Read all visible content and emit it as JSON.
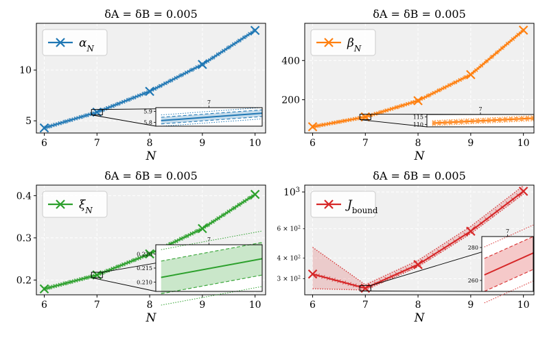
{
  "chart_data": [
    {
      "type": "line",
      "title": "δA = δB = 0.005",
      "xlabel": "N",
      "ylabel": "",
      "x": [
        6,
        7,
        8,
        9,
        10
      ],
      "xlim": [
        5.85,
        10.2
      ],
      "ylim": [
        3.8,
        14.6
      ],
      "yscale": "linear",
      "yticks": [
        5,
        10
      ],
      "yticklabels": [
        "5",
        "10"
      ],
      "legend": {
        "label": "αN",
        "placement": "top-left"
      },
      "color": "#1f77b4",
      "series": [
        {
          "name": "αN",
          "values": [
            4.3,
            5.85,
            7.9,
            10.55,
            13.9
          ]
        }
      ],
      "inset": {
        "xtick": "7",
        "ytick_labels": [
          "5.9",
          "5.8"
        ]
      }
    },
    {
      "type": "line",
      "title": "δA = δB = 0.005",
      "xlabel": "N",
      "ylabel": "",
      "x": [
        6,
        7,
        8,
        9,
        10
      ],
      "xlim": [
        5.85,
        10.2
      ],
      "ylim": [
        30,
        590
      ],
      "yscale": "linear",
      "yticks": [
        200,
        400
      ],
      "yticklabels": [
        "200",
        "400"
      ],
      "legend": {
        "label": "βN",
        "placement": "top-left"
      },
      "color": "#ff7f0e",
      "series": [
        {
          "name": "βN",
          "values": [
            62,
            112,
            195,
            328,
            555
          ]
        }
      ],
      "inset": {
        "xtick": "7",
        "ytick_labels": [
          "115",
          "110"
        ]
      }
    },
    {
      "type": "line",
      "title": "δA = δB = 0.005",
      "xlabel": "N",
      "ylabel": "",
      "x": [
        6,
        7,
        8,
        9,
        10
      ],
      "xlim": [
        5.85,
        10.2
      ],
      "ylim": [
        0.165,
        0.425
      ],
      "yscale": "linear",
      "yticks": [
        0.2,
        0.3,
        0.4
      ],
      "yticklabels": [
        "0.2",
        "0.3",
        "0.4"
      ],
      "legend": {
        "label": "ξN",
        "placement": "top-left"
      },
      "color": "#2ca02c",
      "series": [
        {
          "name": "ξN",
          "values": [
            0.179,
            0.212,
            0.262,
            0.322,
            0.403
          ]
        }
      ],
      "inset": {
        "xtick": "7",
        "ytick_labels": [
          "0.220",
          "0.215",
          "0.210"
        ]
      }
    },
    {
      "type": "line",
      "title": "δA = δB = 0.005",
      "xlabel": "N",
      "ylabel": "",
      "x": [
        6,
        7,
        8,
        9,
        10
      ],
      "xlim": [
        5.85,
        10.2
      ],
      "ylim": [
        240,
        1100
      ],
      "yscale": "log",
      "yticks": [
        1000
      ],
      "yticklabels": [
        "10^3"
      ],
      "yminorticks": [
        300,
        400,
        600
      ],
      "yminorticklabels": [
        "3 × 10^2",
        "4 × 10^2",
        "6 × 10^2"
      ],
      "legend": {
        "label": "Jbound",
        "placement": "top-left"
      },
      "color": "#d62728",
      "series": [
        {
          "name": "Jbound",
          "values": [
            320,
            263,
            365,
            580,
            1010
          ]
        }
      ],
      "inset": {
        "xtick": "7",
        "ytick_labels": [
          "280",
          "260"
        ]
      }
    }
  ]
}
